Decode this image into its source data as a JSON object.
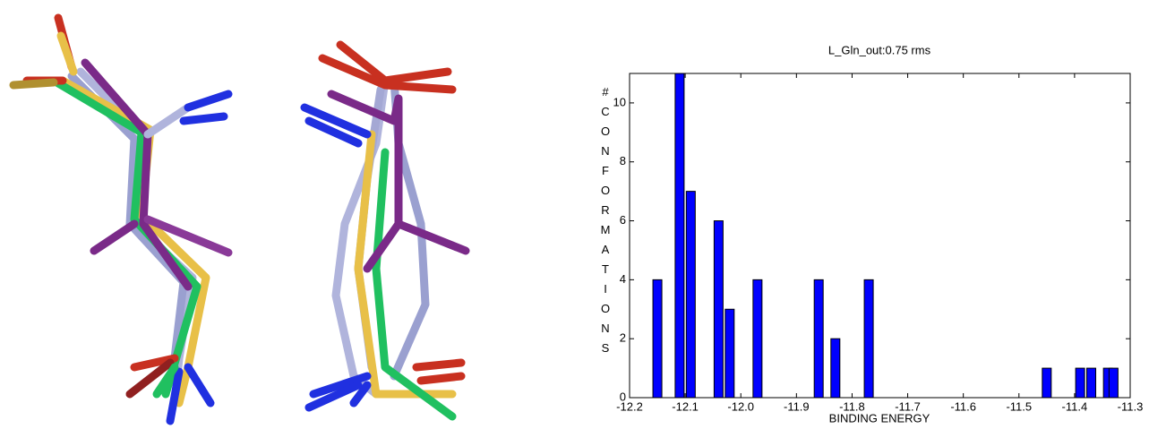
{
  "chart_data": {
    "type": "bar",
    "title": "L_Gln_out:0.75 rms",
    "x_label": "BINDING ENERGY",
    "y_label": "#CONFORMATIONS",
    "x": [
      -12.15,
      -12.11,
      -12.09,
      -12.04,
      -12.02,
      -11.97,
      -11.86,
      -11.83,
      -11.77,
      -11.45,
      -11.39,
      -11.37,
      -11.34,
      -11.33
    ],
    "values": [
      4,
      11,
      7,
      6,
      3,
      4,
      4,
      2,
      4,
      1,
      1,
      1,
      1,
      1
    ],
    "color": "#0000ff",
    "xlim": [
      -12.2,
      -11.3
    ],
    "xticks": [
      -12.2,
      -12.1,
      {
        "value": -12,
        "label": "-12.0"
      },
      -11.9,
      -11.8,
      -11.7,
      -11.6,
      -11.5,
      -11.4,
      -11.3
    ],
    "ylim": [
      0,
      11
    ],
    "yticks": [
      0,
      2,
      4,
      6,
      8,
      10
    ],
    "grid": false
  }
}
